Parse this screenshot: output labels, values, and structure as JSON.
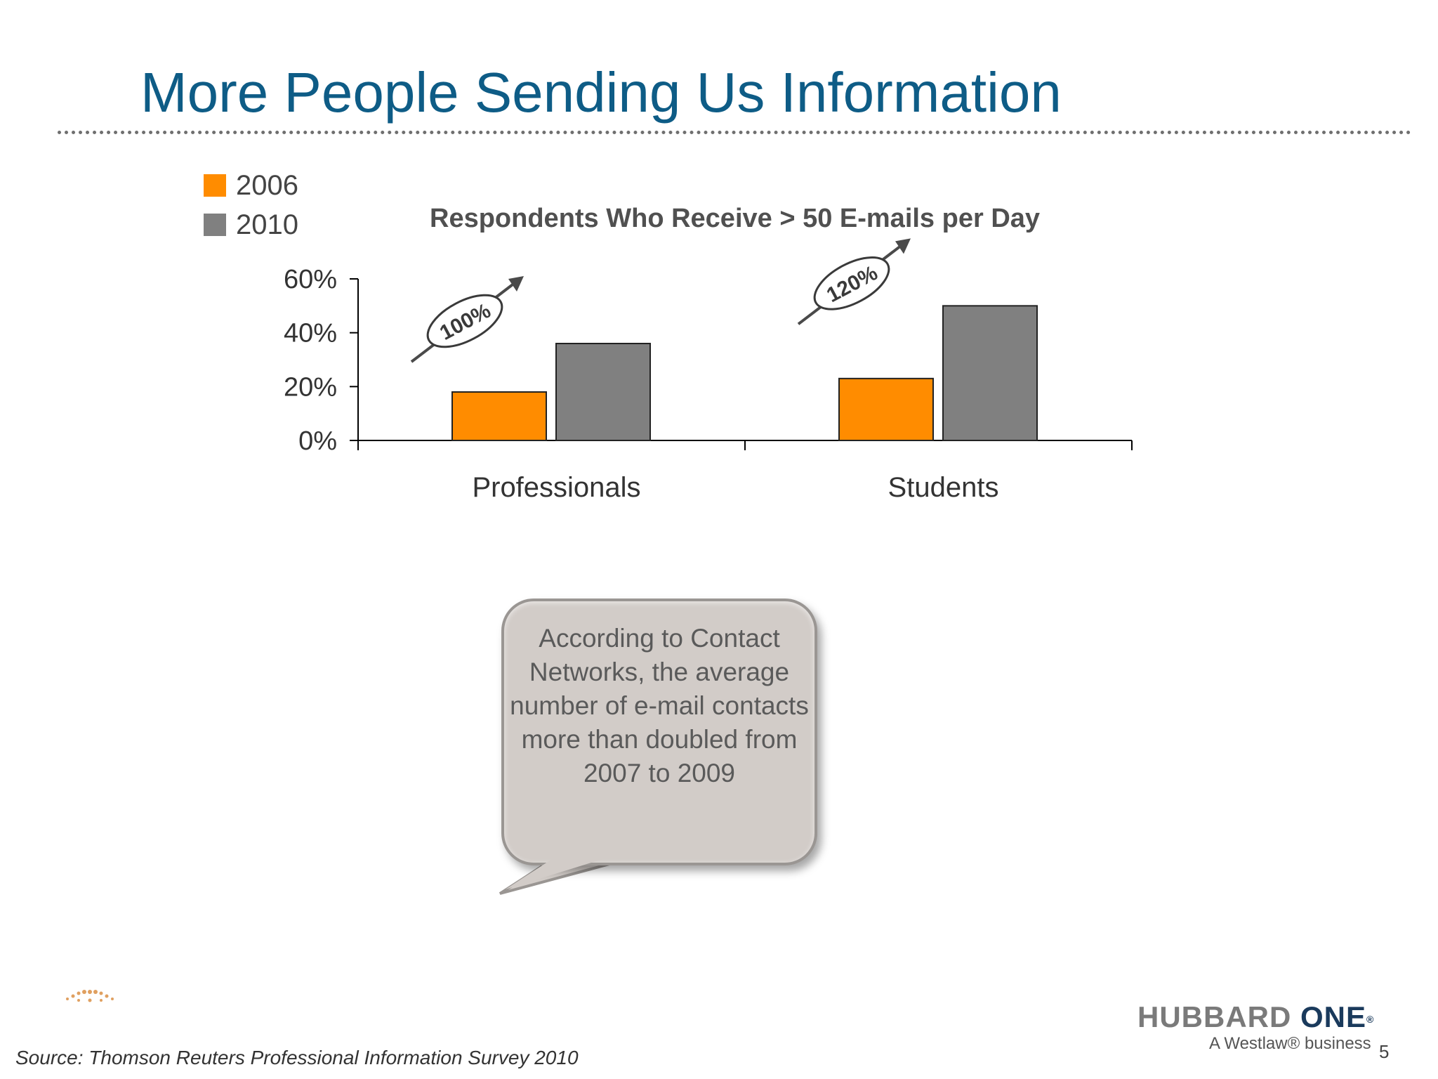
{
  "slide": {
    "title": "More People Sending Us Information",
    "source": "Source: Thomson Reuters Professional Information Survey 2010",
    "page_number": "5",
    "logo": {
      "main": "HUBBARD",
      "strong": "ONE",
      "mark": "®",
      "sub": "A Westlaw® business"
    }
  },
  "callout": {
    "text": "According to Contact Networks, the average number of e-mail contacts more than doubled from 2007 to 2009"
  },
  "colors": {
    "series_2006": "#ff8c00",
    "series_2010": "#808080",
    "title": "#0e5c86"
  },
  "chart_data": {
    "type": "bar",
    "title": "Respondents Who Receive > 50 E-mails per Day",
    "categories": [
      "Professionals",
      "Students"
    ],
    "series": [
      {
        "name": "2006",
        "values": [
          18,
          23
        ],
        "color": "#ff8c00"
      },
      {
        "name": "2010",
        "values": [
          36,
          50
        ],
        "color": "#808080"
      }
    ],
    "ylim": [
      0,
      60
    ],
    "yticks": [
      0,
      20,
      40,
      60
    ],
    "ytick_labels": [
      "0%",
      "20%",
      "40%",
      "60%"
    ],
    "legend_position": "top-left",
    "annotations": [
      {
        "category": "Professionals",
        "label": "100%"
      },
      {
        "category": "Students",
        "label": "120%"
      }
    ]
  }
}
